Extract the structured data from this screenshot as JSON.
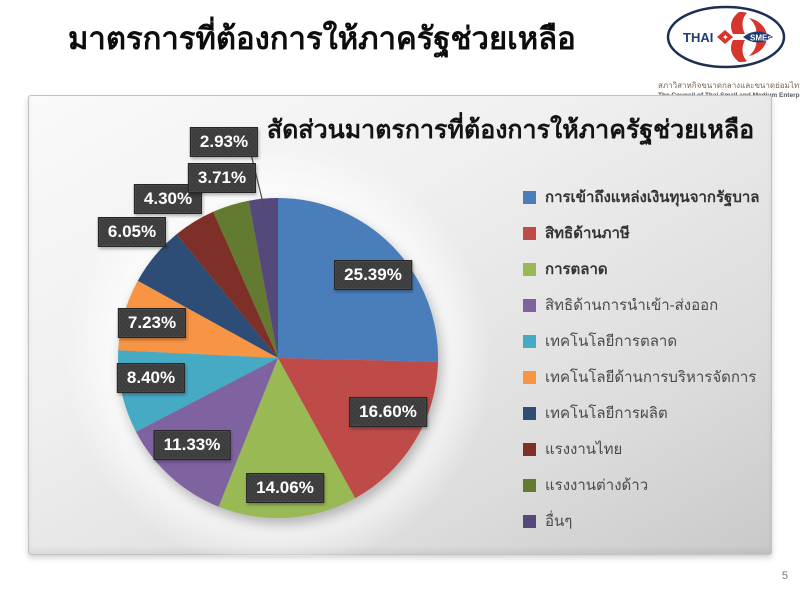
{
  "slide": {
    "title": "มาตรการที่ต้องการให้ภาครัฐช่วยเหลือ",
    "page_number": "5"
  },
  "logo": {
    "thai_label": "THAI",
    "sme_label": "SMEs",
    "org_name_thai": "สภาวิสาหกิจขนาดกลางและขนาดย่อมไทย",
    "org_name_english": "The Council of Thai Small and Medium Enterprises"
  },
  "chart_data": {
    "type": "pie",
    "title": "สัดส่วนมาตรการที่ต้องการให้ภาครัฐช่วยเหลือ",
    "unit": "%",
    "legend_position": "right",
    "categories": [
      "การเข้าถึงแหล่งเงินทุนจากรัฐบาล",
      "สิทธิด้านภาษี",
      "การตลาด",
      "สิทธิด้านการนำเข้า-ส่งออก",
      "เทคโนโลยีการตลาด",
      "เทคโนโลยีด้านการบริหารจัดการ",
      "เทคโนโลยีการผลิต",
      "แรงงานไทย",
      "แรงงานต่างด้าว",
      "อื่นๆ"
    ],
    "values": [
      25.39,
      16.6,
      14.06,
      11.33,
      8.4,
      7.23,
      6.05,
      4.3,
      3.71,
      2.93
    ],
    "labels": [
      "25.39%",
      "16.60%",
      "14.06%",
      "11.33%",
      "8.40%",
      "7.23%",
      "6.05%",
      "4.30%",
      "3.71%",
      "2.93%"
    ],
    "colors": [
      "#4A7EBB",
      "#BE4B48",
      "#98B954",
      "#7F63A1",
      "#46AAC5",
      "#F79545",
      "#2E4D76",
      "#7E2F28",
      "#637A31",
      "#55497B"
    ]
  }
}
